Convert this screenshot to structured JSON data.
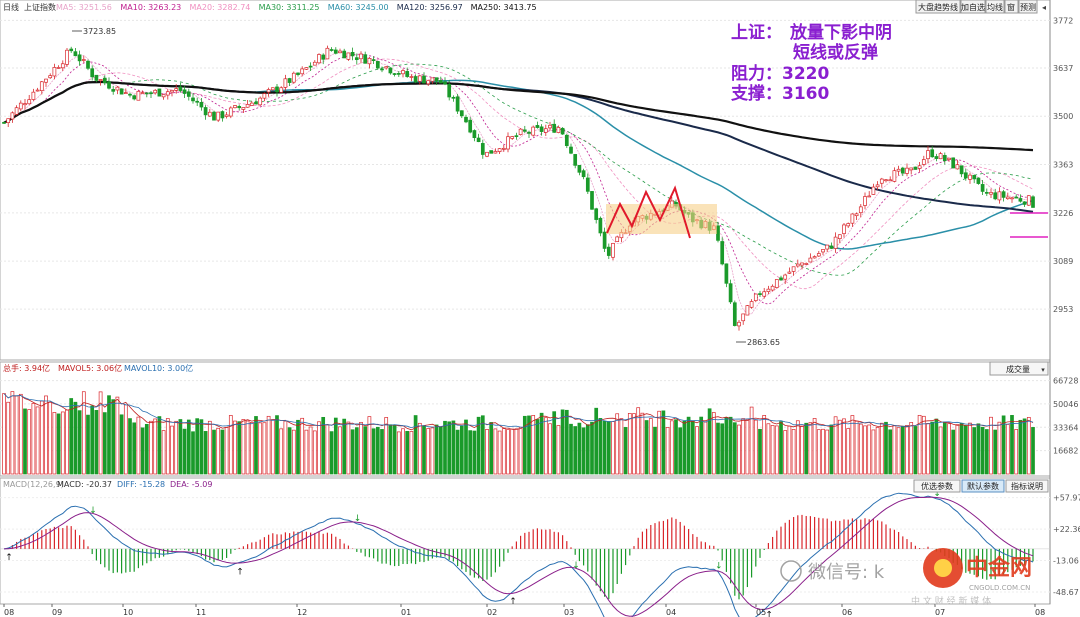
{
  "header": {
    "period": "日线",
    "index_name": "上证指数",
    "ma_items": [
      {
        "label": "MA5: 3251.56",
        "color": "#e8a3c9"
      },
      {
        "label": "MA10: 3263.23",
        "color": "#c02090"
      },
      {
        "label": "MA20: 3282.74",
        "color": "#f090c0"
      },
      {
        "label": "MA30: 3311.25",
        "color": "#2a9d4a"
      },
      {
        "label": "MA60: 3245.00",
        "color": "#2a8fa8"
      },
      {
        "label": "MA120: 3256.97",
        "color": "#1a2a4a"
      },
      {
        "label": "MA250: 3413.75",
        "color": "#111111"
      }
    ]
  },
  "toolbar": {
    "buttons": [
      "大盘趋势线",
      "加自选",
      "均线",
      "窗",
      "预测"
    ],
    "volume_select": "成交量",
    "macd_buttons": [
      "优选参数",
      "默认参数",
      "指标说明"
    ]
  },
  "annotation": {
    "line1_a": "上证：",
    "line1_b": "放量下影中阴",
    "line2": "短线或反弹",
    "line3": "阻力：3220",
    "line4": "支撑：3160"
  },
  "chart_data": {
    "type": "candlestick",
    "price_axis": {
      "ticks": [
        "3772",
        "3637",
        "3500",
        "3363",
        "3226",
        "3089",
        "2953"
      ],
      "range": [
        2820,
        3790
      ]
    },
    "high_label": "3723.85",
    "low_label": "2863.65",
    "x_ticks": [
      "08",
      "09",
      "10",
      "11",
      "12",
      "01",
      "02",
      "03",
      "04",
      "05",
      "06",
      "07",
      "08"
    ],
    "volume": {
      "header": {
        "total": "总手: 3.94亿",
        "mavol5": "MAVOL5: 3.06亿",
        "mavol10": "MAVOL10: 3.00亿"
      },
      "ticks": [
        "66728",
        "50046",
        "33364",
        "16682"
      ],
      "range": [
        0,
        70000
      ]
    },
    "macd": {
      "header": {
        "name": "MACD(12,26,9)",
        "macd": "MACD: -20.37",
        "diff": "DIFF: -15.28",
        "dea": "DEA: -5.09"
      },
      "ticks": [
        "+57.97",
        "+22.36",
        "-13.06",
        "-48.67"
      ]
    },
    "ohlc_series_note": ""
  },
  "watermark": {
    "wechat": "微信号: k",
    "logo_text": "中金网",
    "logo_sub": "CNGOLD.COM.CN",
    "logo_tagline": "中 文 财 经 新 媒 体"
  },
  "colors": {
    "up": "#d9262b",
    "down": "#1a9a2a",
    "accent": "#8a1fd0"
  }
}
